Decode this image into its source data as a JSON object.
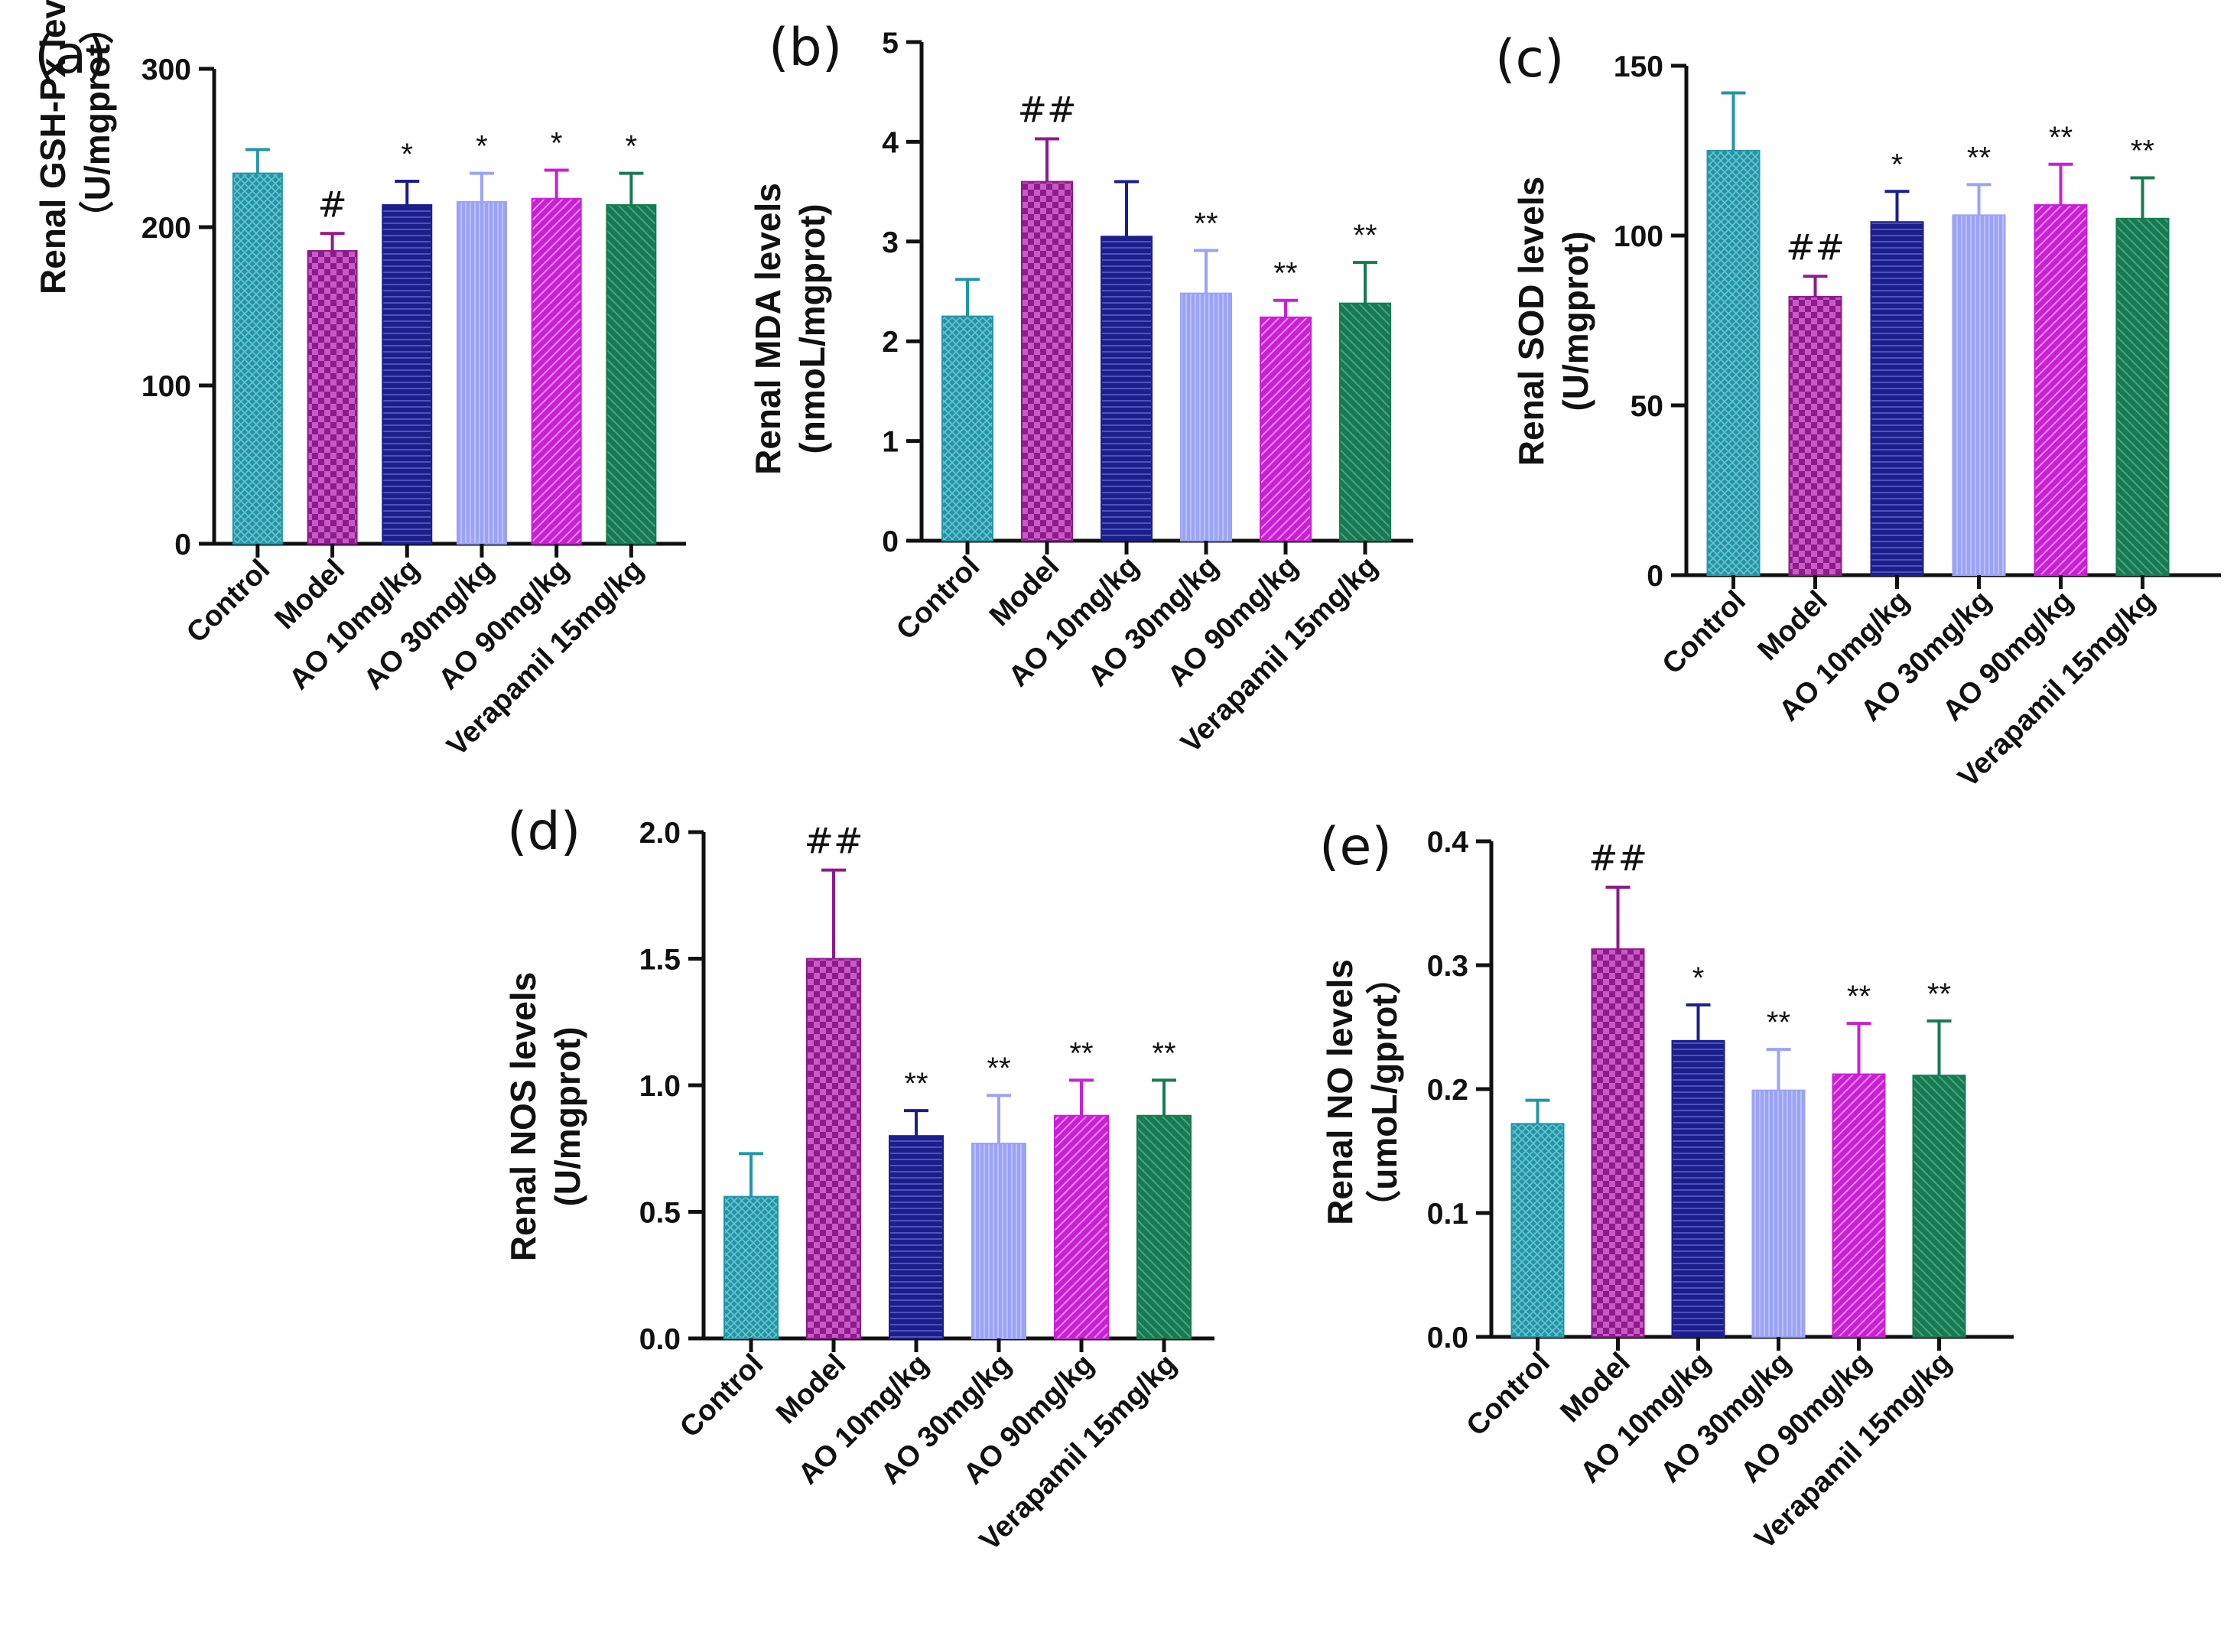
{
  "colors": {
    "control": "#2196a8",
    "model": "#8e1a8c",
    "ao10": "#1c1f8a",
    "ao30": "#9aa3f6",
    "ao90": "#c91fd6",
    "verapamil": "#177a52",
    "axis": "#111111"
  },
  "chart_data": [
    {
      "panel": "(a)",
      "type": "bar",
      "ylabel": [
        "Renal GSH-Px levels",
        "（U/mgprot）"
      ],
      "ylim": [
        0,
        300
      ],
      "yticks": [
        0,
        100,
        200,
        300
      ],
      "categories": [
        "Control",
        "Model",
        "AO 10mg/kg",
        "AO 30mg/kg",
        "AO 90mg/kg",
        "Verapamil 15mg/kg"
      ],
      "values": [
        234,
        185,
        214,
        216,
        218,
        214
      ],
      "errors": [
        15,
        11,
        15,
        18,
        18,
        20
      ],
      "annotations": [
        "",
        "#",
        "*",
        "*",
        "*",
        "*"
      ]
    },
    {
      "panel": "(b)",
      "type": "bar",
      "ylabel": [
        "Renal MDA levels",
        "(nmoL/mgprot)"
      ],
      "ylim": [
        0,
        5
      ],
      "yticks": [
        0,
        1,
        2,
        3,
        4,
        5
      ],
      "categories": [
        "Control",
        "Model",
        "AO 10mg/kg",
        "AO 30mg/kg",
        "AO 90mg/kg",
        "Verapamil 15mg/kg"
      ],
      "values": [
        2.25,
        3.6,
        3.05,
        2.48,
        2.24,
        2.38
      ],
      "errors": [
        0.37,
        0.43,
        0.55,
        0.43,
        0.17,
        0.41
      ],
      "annotations": [
        "",
        "##",
        "",
        "**",
        "**",
        "**"
      ]
    },
    {
      "panel": "(c)",
      "type": "bar",
      "ylabel": [
        "Renal SOD levels",
        "(U/mgprot)"
      ],
      "ylim": [
        0,
        150
      ],
      "yticks": [
        0,
        50,
        100,
        150
      ],
      "categories": [
        "Control",
        "Model",
        "AO 10mg/kg",
        "AO 30mg/kg",
        "AO 90mg/kg",
        "Verapamil 15mg/kg"
      ],
      "values": [
        125,
        82,
        104,
        106,
        109,
        105
      ],
      "errors": [
        17,
        6,
        9,
        9,
        12,
        12
      ],
      "annotations": [
        "",
        "##",
        "*",
        "**",
        "**",
        "**"
      ]
    },
    {
      "panel": "(d)",
      "type": "bar",
      "ylabel": [
        "Renal NOS levels",
        "(U/mgprot)"
      ],
      "ylim": [
        0,
        2.0
      ],
      "yticks": [
        "0.0",
        "0.5",
        "1.0",
        "1.5",
        "2.0"
      ],
      "categories": [
        "Control",
        "Model",
        "AO 10mg/kg",
        "AO 30mg/kg",
        "AO 90mg/kg",
        "Verapamil 15mg/kg"
      ],
      "values": [
        0.56,
        1.5,
        0.8,
        0.77,
        0.88,
        0.88
      ],
      "errors": [
        0.17,
        0.35,
        0.1,
        0.19,
        0.14,
        0.14
      ],
      "annotations": [
        "",
        "##",
        "**",
        "**",
        "**",
        "**"
      ]
    },
    {
      "panel": "(e)",
      "type": "bar",
      "ylabel": [
        "Renal NO levels",
        "（umoL/gprot）"
      ],
      "ylim": [
        0,
        0.4
      ],
      "yticks": [
        "0.0",
        "0.1",
        "0.2",
        "0.3",
        "0.4"
      ],
      "categories": [
        "Control",
        "Model",
        "AO 10mg/kg",
        "AO 30mg/kg",
        "AO 90mg/kg",
        "Verapamil 15mg/kg"
      ],
      "values": [
        0.172,
        0.313,
        0.239,
        0.199,
        0.212,
        0.211
      ],
      "errors": [
        0.019,
        0.05,
        0.029,
        0.033,
        0.041,
        0.044
      ],
      "annotations": [
        "",
        "##",
        "*",
        "**",
        "**",
        "**"
      ]
    }
  ]
}
